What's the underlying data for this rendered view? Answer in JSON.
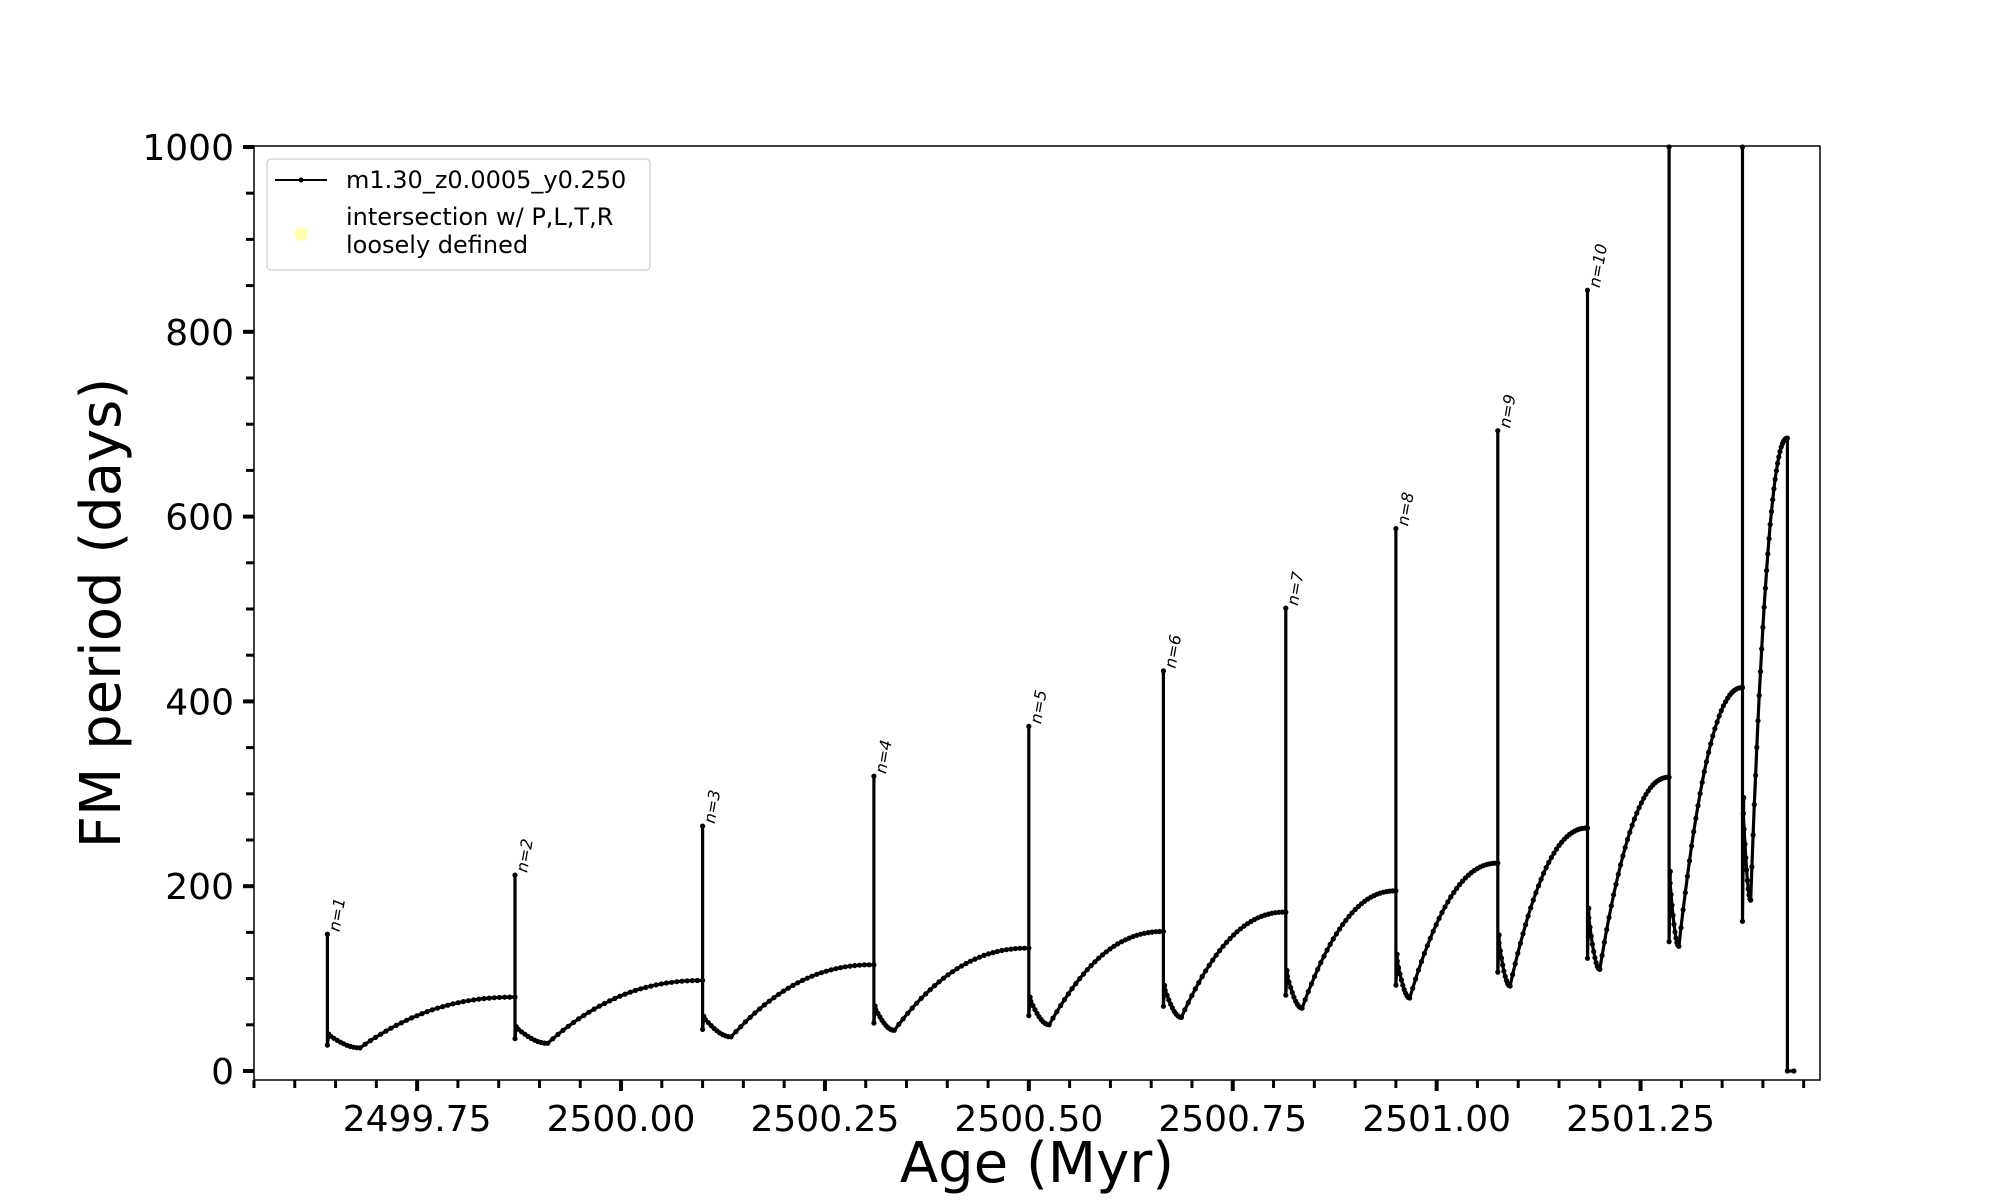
{
  "chart_data": {
    "type": "line",
    "title": "",
    "xlabel": "Age (Myr)",
    "ylabel": "FM period (days)",
    "xlim": [
      2499.55,
      2501.47
    ],
    "ylim": [
      0,
      1000
    ],
    "x_ticks": [
      2499.75,
      2500.0,
      2500.25,
      2500.5,
      2500.75,
      2501.0,
      2501.25
    ],
    "x_tick_labels": [
      "2499.75",
      "2500.00",
      "2500.25",
      "2500.50",
      "2500.75",
      "2501.00",
      "2501.25"
    ],
    "y_ticks": [
      0,
      200,
      400,
      600,
      800,
      1000
    ],
    "y_tick_labels": [
      "0",
      "200",
      "400",
      "600",
      "800",
      "1000"
    ],
    "grid": false,
    "legend_position": "top-left",
    "legend": [
      {
        "label": "m1.30_z0.0005_y0.250",
        "color": "#000000",
        "marker": "line-with-dots"
      },
      {
        "label": "intersection w/ P,L,T,R\nloosely defined",
        "color": "#ffffb3",
        "marker": "circle"
      }
    ],
    "series": [
      {
        "name": "m1.30_z0.0005_y0.250",
        "color": "#000000",
        "pulses": [
          {
            "x": 2499.64,
            "x_next": 2499.87,
            "peak": 148,
            "min": 25,
            "min_x": 2499.68,
            "end": 80,
            "drop_low": 28
          },
          {
            "x": 2499.87,
            "x_next": 2500.1,
            "peak": 212,
            "min": 30,
            "min_x": 2499.91,
            "end": 98,
            "drop_low": 35
          },
          {
            "x": 2500.1,
            "x_next": 2500.31,
            "peak": 265,
            "min": 37,
            "min_x": 2500.135,
            "end": 115,
            "drop_low": 45
          },
          {
            "x": 2500.31,
            "x_next": 2500.5,
            "peak": 319,
            "min": 44,
            "min_x": 2500.335,
            "end": 133,
            "drop_low": 52
          },
          {
            "x": 2500.5,
            "x_next": 2500.665,
            "peak": 373,
            "min": 50,
            "min_x": 2500.525,
            "end": 151,
            "drop_low": 60
          },
          {
            "x": 2500.665,
            "x_next": 2500.815,
            "peak": 433,
            "min": 58,
            "min_x": 2500.687,
            "end": 172,
            "drop_low": 70
          },
          {
            "x": 2500.815,
            "x_next": 2500.95,
            "peak": 501,
            "min": 68,
            "min_x": 2500.835,
            "end": 195,
            "drop_low": 82
          },
          {
            "x": 2500.95,
            "x_next": 2501.075,
            "peak": 587,
            "min": 79,
            "min_x": 2500.967,
            "end": 225,
            "drop_low": 93
          },
          {
            "x": 2501.075,
            "x_next": 2501.185,
            "peak": 693,
            "min": 92,
            "min_x": 2501.09,
            "end": 263,
            "drop_low": 107
          },
          {
            "x": 2501.185,
            "x_next": 2501.285,
            "peak": 845,
            "min": 110,
            "min_x": 2501.2,
            "end": 318,
            "drop_low": 122
          },
          {
            "x": 2501.285,
            "x_next": 2501.375,
            "peak": 1000,
            "min": 135,
            "min_x": 2501.297,
            "end": 415,
            "drop_low": 140
          },
          {
            "x": 2501.375,
            "x_next": 2501.43,
            "peak": 1000,
            "min": 185,
            "min_x": 2501.385,
            "end": 685,
            "drop_low": 162
          }
        ],
        "final_drop": {
          "x": 2501.43,
          "x_end": 2501.438,
          "to": 0
        }
      }
    ],
    "annotations": [
      {
        "text": "n=1",
        "x": 2499.64,
        "y": 148
      },
      {
        "text": "n=2",
        "x": 2499.87,
        "y": 212
      },
      {
        "text": "n=3",
        "x": 2500.1,
        "y": 265
      },
      {
        "text": "n=4",
        "x": 2500.31,
        "y": 319
      },
      {
        "text": "n=5",
        "x": 2500.5,
        "y": 373
      },
      {
        "text": "n=6",
        "x": 2500.665,
        "y": 433
      },
      {
        "text": "n=7",
        "x": 2500.815,
        "y": 501
      },
      {
        "text": "n=8",
        "x": 2500.95,
        "y": 587
      },
      {
        "text": "n=9",
        "x": 2501.075,
        "y": 693
      },
      {
        "text": "n=10",
        "x": 2501.185,
        "y": 845
      }
    ]
  }
}
